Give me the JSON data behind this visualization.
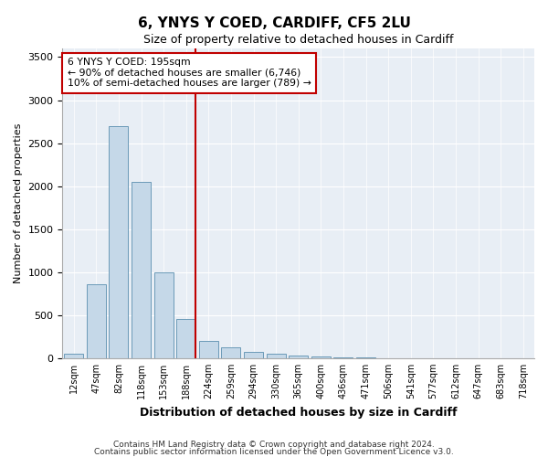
{
  "title": "6, YNYS Y COED, CARDIFF, CF5 2LU",
  "subtitle": "Size of property relative to detached houses in Cardiff",
  "xlabel": "Distribution of detached houses by size in Cardiff",
  "ylabel": "Number of detached properties",
  "footnote1": "Contains HM Land Registry data © Crown copyright and database right 2024.",
  "footnote2": "Contains public sector information licensed under the Open Government Licence v3.0.",
  "annotation_line1": "6 YNYS Y COED: 195sqm",
  "annotation_line2": "← 90% of detached houses are smaller (6,746)",
  "annotation_line3": "10% of semi-detached houses are larger (789) →",
  "bar_color": "#c5d8e8",
  "bar_edge_color": "#5a8faf",
  "highlight_color": "#c00000",
  "bg_color": "#e8eef5",
  "categories": [
    "12sqm",
    "47sqm",
    "82sqm",
    "118sqm",
    "153sqm",
    "188sqm",
    "224sqm",
    "259sqm",
    "294sqm",
    "330sqm",
    "365sqm",
    "400sqm",
    "436sqm",
    "471sqm",
    "506sqm",
    "541sqm",
    "577sqm",
    "612sqm",
    "647sqm",
    "683sqm",
    "718sqm"
  ],
  "values": [
    50,
    855,
    2700,
    2050,
    1000,
    450,
    200,
    130,
    70,
    50,
    30,
    20,
    10,
    5,
    3,
    2,
    1,
    0,
    0,
    0,
    0
  ],
  "red_line_index": 5,
  "ylim": [
    0,
    3600
  ],
  "yticks": [
    0,
    500,
    1000,
    1500,
    2000,
    2500,
    3000,
    3500
  ]
}
